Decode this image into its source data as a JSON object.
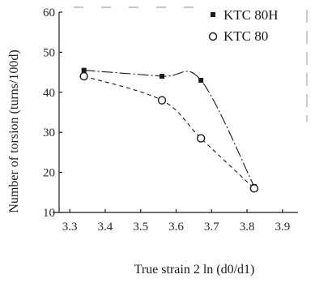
{
  "chart_data": {
    "type": "scatter",
    "xlabel": "True strain  2 ln (d0/d1)",
    "ylabel": "Number of torsion (turns/100d)",
    "xlim": [
      3.27,
      3.93
    ],
    "ylim": [
      10,
      60
    ],
    "x_ticks": [
      "3.3",
      "3.4",
      "3.5",
      "3.6",
      "3.7",
      "3.8",
      "3.9"
    ],
    "y_ticks": [
      "10",
      "20",
      "30",
      "40",
      "50",
      "60"
    ],
    "grid": false,
    "legend_position": "top-right",
    "series": [
      {
        "name": "KTC 80H",
        "marker": "filled-square",
        "line_style": "dash-dot",
        "x": [
          3.34,
          3.56,
          3.67,
          3.82
        ],
        "y": [
          45.5,
          44.0,
          43.0,
          16.5
        ]
      },
      {
        "name": "KTC 80",
        "marker": "open-circle",
        "line_style": "dashed",
        "x": [
          3.34,
          3.56,
          3.67,
          3.82
        ],
        "y": [
          44.0,
          38.0,
          28.5,
          16.0
        ]
      }
    ],
    "colors": {
      "ink": "#1a1a1a"
    }
  }
}
